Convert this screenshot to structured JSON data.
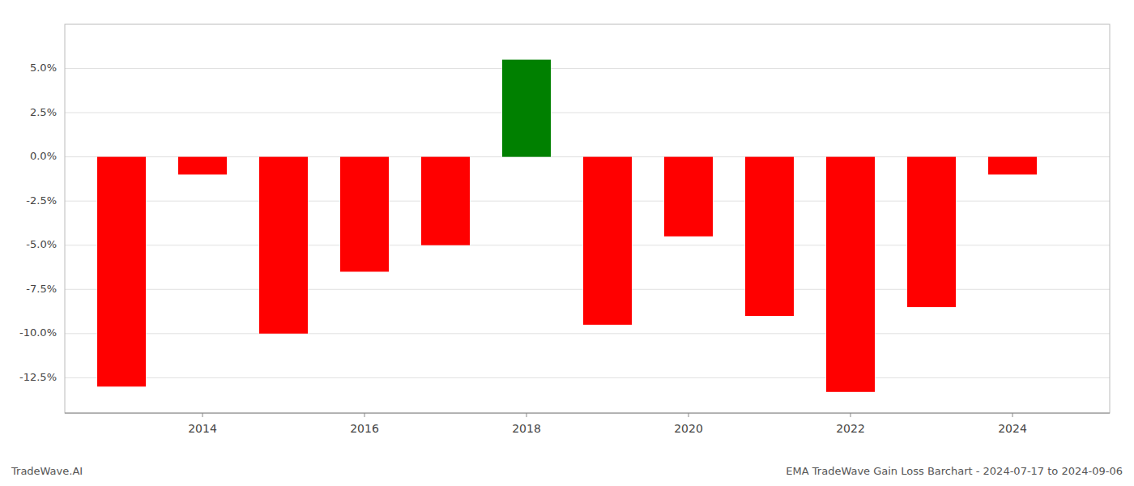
{
  "chart_data": {
    "type": "bar",
    "x": [
      2013,
      2014,
      2015,
      2016,
      2017,
      2018,
      2019,
      2020,
      2021,
      2022,
      2023,
      2024
    ],
    "values": [
      -0.13,
      -0.01,
      -0.1,
      -0.065,
      -0.05,
      0.055,
      -0.095,
      -0.045,
      -0.09,
      -0.133,
      -0.085,
      -0.01
    ],
    "colors": [
      "#ff0000",
      "#ff0000",
      "#ff0000",
      "#ff0000",
      "#ff0000",
      "#008000",
      "#ff0000",
      "#ff0000",
      "#ff0000",
      "#ff0000",
      "#ff0000",
      "#ff0000"
    ],
    "xlim": [
      2012.3,
      2025.2
    ],
    "xticks": [
      2014,
      2016,
      2018,
      2020,
      2022,
      2024
    ],
    "ylim": [
      -0.145,
      0.075
    ],
    "yticks": [
      {
        "value": -0.125,
        "label": "-12.5%"
      },
      {
        "value": -0.1,
        "label": "-10.0%"
      },
      {
        "value": -0.075,
        "label": "-7.5%"
      },
      {
        "value": -0.05,
        "label": "-5.0%"
      },
      {
        "value": -0.025,
        "label": "-2.5%"
      },
      {
        "value": 0.0,
        "label": "0.0%"
      },
      {
        "value": 0.025,
        "label": "2.5%"
      },
      {
        "value": 0.05,
        "label": "5.0%"
      }
    ],
    "grid": true,
    "annotations": [
      "TradeWave.AI",
      "EMA TradeWave Gain Loss Barchart - 2024-07-17 to 2024-09-06"
    ]
  }
}
